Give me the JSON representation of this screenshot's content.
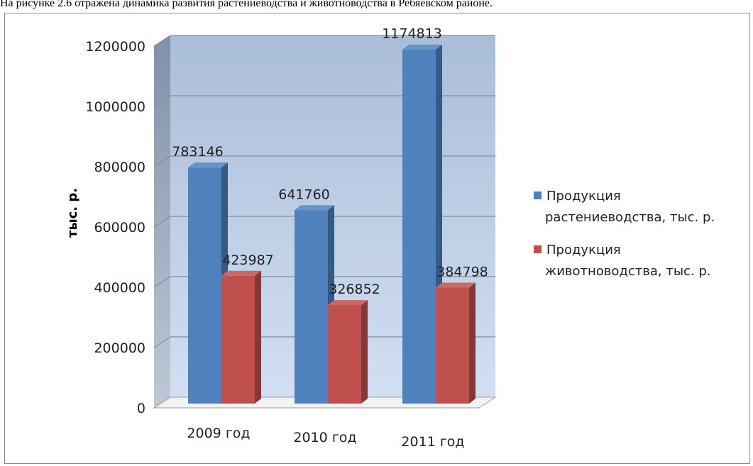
{
  "caption": "На рисунке 2.6 отражена динамика развития растениеводства и животноводства в Ребяевском районе.",
  "colors": {
    "plant": "#4f81bd",
    "animal": "#c0504d",
    "wall": "#b9cdeb",
    "side_wall": "#7f91a8"
  },
  "chart_data": {
    "type": "bar",
    "categories": [
      "2009 год",
      "2010 год",
      "2011 год"
    ],
    "series": [
      {
        "name": "Продукция растениеводства, тыс. р.",
        "values": [
          783146,
          641760,
          1174813
        ]
      },
      {
        "name": "Продукция животноводства, тыс. р.",
        "values": [
          423987,
          326852,
          384798
        ]
      }
    ],
    "ylabel": "тыс. р.",
    "ylim": [
      0,
      1200000
    ],
    "yticks": [
      "0",
      "200000",
      "400000",
      "600000",
      "800000",
      "1000000",
      "1200000"
    ],
    "grid": true,
    "legend_position": "right",
    "legend": [
      {
        "lines": [
          "Продукция",
          "растениеводства, тыс. р."
        ]
      },
      {
        "lines": [
          "Продукция",
          "животноводства, тыс. р."
        ]
      }
    ]
  }
}
